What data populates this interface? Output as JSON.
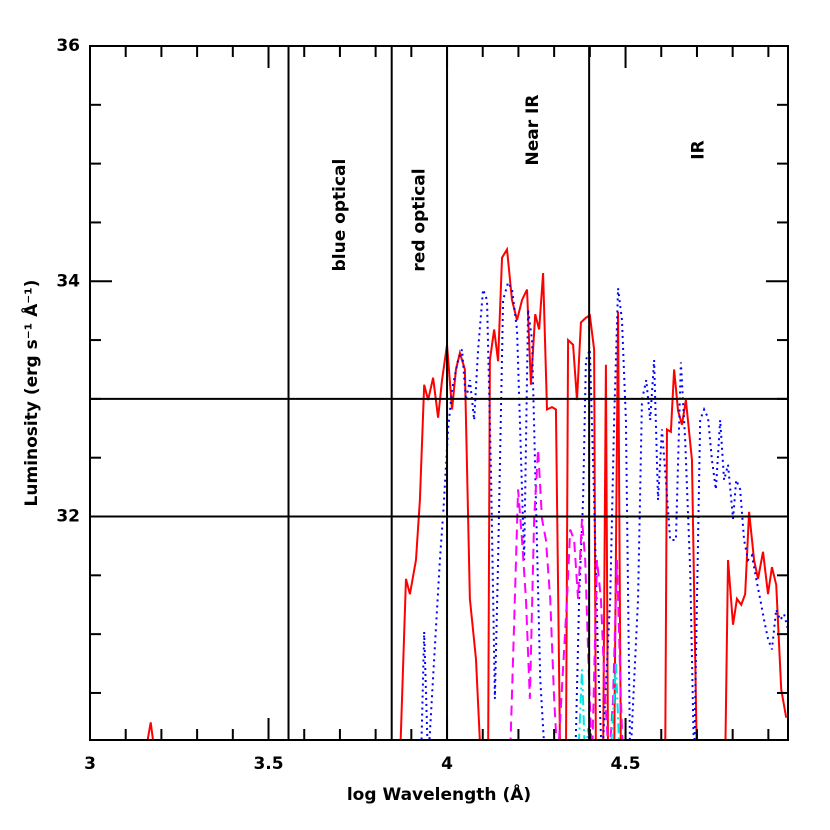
{
  "chart_data": {
    "type": "line",
    "xlabel": "log Wavelength (Å)",
    "ylabel": "Luminosity (erg s⁻¹ Å⁻¹)",
    "xlim": [
      3,
      4.955
    ],
    "ylim": [
      30.1,
      36
    ],
    "xticks": [
      3,
      3.5,
      4,
      4.5
    ],
    "yticks": [
      32,
      34,
      36
    ],
    "xminorticks": [
      3.1,
      3.2,
      3.3,
      3.4,
      3.6,
      3.7,
      3.8,
      3.9,
      4.1,
      4.2,
      4.3,
      4.4,
      4.6,
      4.7,
      4.8,
      4.9
    ],
    "yminorticks": [
      30.5,
      31,
      31.5,
      32.5,
      33,
      33.5,
      34.5,
      35,
      35.5
    ],
    "vlines": [
      3.556,
      3.845,
      4.0,
      4.398
    ],
    "hlines": [
      33,
      32
    ],
    "regions": [
      "blue optical",
      "red optical",
      "Near IR",
      "IR"
    ],
    "series": [
      {
        "color": "#ff0000",
        "dash": "solid",
        "x": [
          3.15,
          3.17,
          3.185,
          3.5,
          3.868,
          3.885,
          3.896,
          3.913,
          3.924,
          3.936,
          3.947,
          3.961,
          3.975,
          3.986,
          4.0,
          4.014,
          4.025,
          4.036,
          4.05,
          4.064,
          4.081,
          4.095,
          4.115,
          4.12,
          4.132,
          4.143,
          4.154,
          4.168,
          4.182,
          4.196,
          4.21,
          4.224,
          4.235,
          4.247,
          4.258,
          4.269,
          4.28,
          4.294,
          4.305,
          4.317,
          4.333,
          4.339,
          4.353,
          4.364,
          4.375,
          4.389,
          4.4,
          4.412,
          4.417,
          4.437,
          4.445,
          4.451,
          4.468,
          4.479,
          4.487,
          4.611,
          4.616,
          4.627,
          4.636,
          4.647,
          4.658,
          4.669,
          4.686,
          4.7,
          4.779,
          4.787,
          4.801,
          4.812,
          4.824,
          4.835,
          4.846,
          4.86,
          4.871,
          4.885,
          4.899,
          4.91,
          4.922,
          4.936,
          4.95
        ],
        "values": [
          29.9,
          30.25,
          29.9,
          null,
          29.9,
          31.47,
          31.34,
          31.63,
          32.14,
          33.12,
          32.99,
          33.18,
          32.84,
          33.16,
          33.46,
          32.91,
          33.25,
          33.39,
          33.25,
          31.3,
          30.79,
          29.9,
          29.9,
          33.33,
          33.59,
          33.32,
          34.2,
          34.27,
          33.84,
          33.67,
          33.84,
          33.93,
          33.12,
          33.72,
          33.59,
          34.07,
          32.91,
          32.93,
          32.91,
          29.9,
          29.9,
          33.5,
          33.46,
          32.99,
          33.65,
          33.69,
          33.71,
          33.42,
          29.9,
          29.9,
          33.29,
          29.9,
          29.9,
          33.74,
          29.9,
          29.9,
          32.74,
          32.72,
          33.25,
          32.9,
          32.78,
          32.99,
          32.48,
          29.9,
          29.9,
          31.63,
          31.08,
          31.3,
          31.25,
          31.34,
          32.04,
          31.63,
          31.47,
          31.7,
          31.34,
          31.57,
          31.42,
          30.53,
          30.29
        ]
      },
      {
        "color": "#0000ff",
        "dash": "dotted",
        "x": [
          3.927,
          3.936,
          3.947,
          3.98,
          3.99,
          4.003,
          4.014,
          4.031,
          4.042,
          4.053,
          4.064,
          4.076,
          4.087,
          4.101,
          4.112,
          4.123,
          4.134,
          4.143,
          4.157,
          4.171,
          4.182,
          4.196,
          4.204,
          4.216,
          4.227,
          4.238,
          4.249,
          4.261,
          4.275,
          4.359,
          4.37,
          4.381,
          4.389,
          4.4,
          4.412,
          4.423,
          4.434,
          4.457,
          4.468,
          4.479,
          4.49,
          4.501,
          4.513,
          4.535,
          4.546,
          4.558,
          4.569,
          4.58,
          4.591,
          4.602,
          4.613,
          4.625,
          4.641,
          4.655,
          4.667,
          4.681,
          4.692,
          4.709,
          4.72,
          4.731,
          4.742,
          4.753,
          4.765,
          4.776,
          4.787,
          4.801,
          4.81,
          4.821,
          4.832,
          4.843,
          4.854,
          4.866,
          4.877,
          4.888,
          4.899,
          4.91,
          4.922,
          4.933,
          4.944,
          4.955
        ],
        "values": [
          29.9,
          31.02,
          29.9,
          31.63,
          32.06,
          32.74,
          33.08,
          33.33,
          33.42,
          32.99,
          33.16,
          32.82,
          33.42,
          33.93,
          33.84,
          32.4,
          30.45,
          31.63,
          33.84,
          33.99,
          33.93,
          33.59,
          32.82,
          31.63,
          33.76,
          33.5,
          32.14,
          30.62,
          29.9,
          29.9,
          31.3,
          32.14,
          33.33,
          33.42,
          32.14,
          30.79,
          29.9,
          31.3,
          32.82,
          33.94,
          33.67,
          32.82,
          29.9,
          31.3,
          32.99,
          33.16,
          32.82,
          33.33,
          32.14,
          32.74,
          32.31,
          31.8,
          31.8,
          33.31,
          32.65,
          31.55,
          29.9,
          32.82,
          32.91,
          32.84,
          32.48,
          32.23,
          32.82,
          32.31,
          32.44,
          31.98,
          32.31,
          32.23,
          31.8,
          31.63,
          31.67,
          31.47,
          31.3,
          31.12,
          30.96,
          30.87,
          31.21,
          31.12,
          31.17,
          31.04
        ]
      },
      {
        "color": "#ff00ff",
        "dash": "dashed",
        "x": [
          4.176,
          4.188,
          4.199,
          4.21,
          4.221,
          4.232,
          4.244,
          4.255,
          4.266,
          4.277,
          4.289,
          4.3,
          4.31,
          4.336,
          4.345,
          4.356,
          4.367,
          4.378,
          4.387,
          4.395,
          4.406,
          4.42,
          4.431,
          4.443,
          4.454,
          4.465,
          4.476,
          4.487,
          4.493
        ],
        "values": [
          29.9,
          31.1,
          32.23,
          31.8,
          31.3,
          30.45,
          31.98,
          32.57,
          31.98,
          31.8,
          31.3,
          30.45,
          29.9,
          31.3,
          31.89,
          31.8,
          31.3,
          31.98,
          31.63,
          30.87,
          29.9,
          31.63,
          31.3,
          30.45,
          29.9,
          30.45,
          31.63,
          30.45,
          29.9
        ]
      },
      {
        "color": "#00e5e5",
        "dash": "dashdot",
        "x": [
          4.367,
          4.378,
          4.387,
          4.395,
          4.406,
          4.43,
          4.457,
          4.473,
          4.484
        ],
        "values": [
          29.9,
          30.7,
          29.9,
          30.2,
          29.9,
          null,
          29.9,
          30.75,
          29.9
        ]
      }
    ]
  }
}
